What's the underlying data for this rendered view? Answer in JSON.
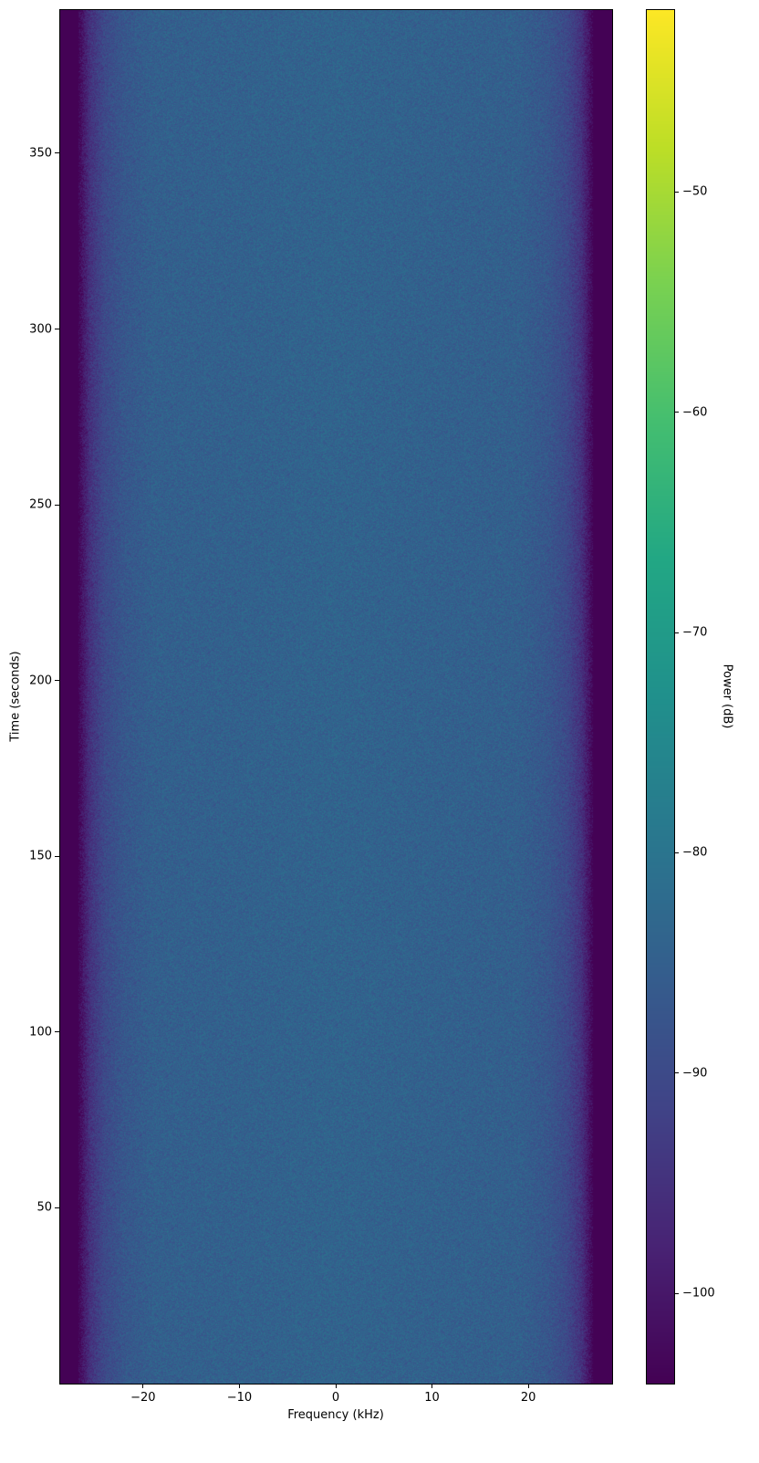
{
  "chart_data": {
    "type": "heatmap",
    "xlabel": "Frequency (kHz)",
    "ylabel": "Time (seconds)",
    "xlim": [
      -28.7,
      28.7
    ],
    "ylim": [
      0,
      391
    ],
    "xticks": [
      -20,
      -10,
      0,
      10,
      20
    ],
    "xtick_labels": [
      "−20",
      "−10",
      "0",
      "10",
      "20"
    ],
    "yticks": [
      50,
      100,
      150,
      200,
      250,
      300,
      350
    ],
    "ytick_labels": [
      "50",
      "100",
      "150",
      "200",
      "250",
      "300",
      "350"
    ],
    "colormap": "viridis",
    "colorbar": {
      "label": "Power (dB)",
      "range": [
        -104.1,
        -41.7
      ],
      "ticks": [
        -100,
        -90,
        -80,
        -70,
        -60,
        -50
      ],
      "tick_labels": [
        "−100",
        "−90",
        "−80",
        "−70",
        "−60",
        "−50"
      ]
    },
    "frequency_profile_db": {
      "frequency_khz": [
        -28.7,
        -26.8,
        -25.5,
        -24,
        -22,
        -19,
        0,
        19,
        22,
        24,
        25.5,
        26.8,
        28.7
      ],
      "power_db": [
        -104,
        -104,
        -95,
        -90,
        -87,
        -85,
        -84,
        -85,
        -87,
        -90,
        -95,
        -104,
        -104
      ]
    },
    "noise_db": 3,
    "grid": false
  }
}
